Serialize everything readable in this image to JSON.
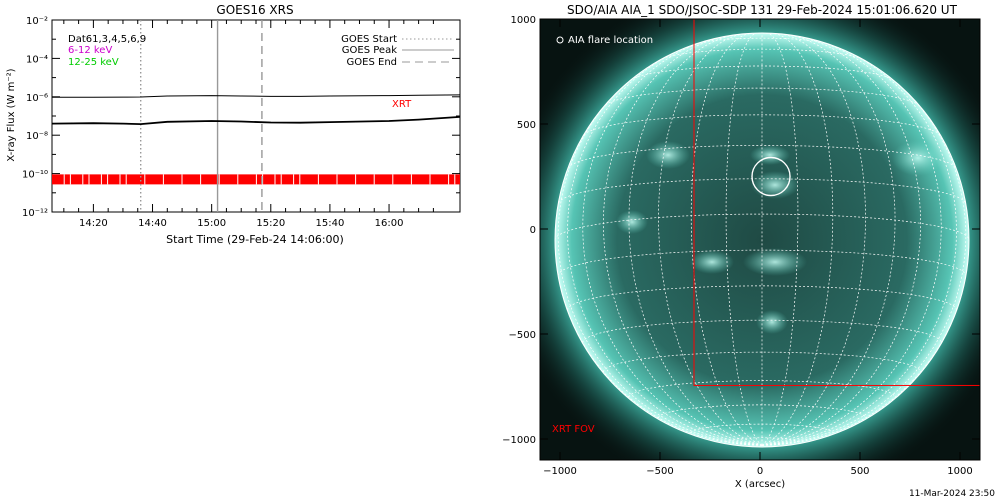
{
  "chart_data": [
    {
      "type": "line",
      "title": "GOES16 XRS",
      "xlabel": "Start Time (29-Feb-24 14:06:00)",
      "ylabel": "X-ray Flux (W m⁻²)",
      "yscale": "log",
      "xlim": [
        "14:06",
        "16:24"
      ],
      "ylim": [
        1e-12,
        0.01
      ],
      "x_ticks": [
        "14:20",
        "14:40",
        "15:00",
        "15:20",
        "15:40",
        "16:00"
      ],
      "y_ticks": [
        "10⁻¹²",
        "10⁻¹⁰",
        "10⁻⁸",
        "10⁻⁶",
        "10⁻⁴",
        "10⁻²"
      ],
      "grid": false,
      "legend_placement": "top-right",
      "detector_label": "Dat61,3,4,5,6,9",
      "series": [
        {
          "name": "6-12 keV",
          "color": "#cc00cc",
          "x": [
            "14:06",
            "14:20",
            "14:30",
            "14:36",
            "14:45",
            "15:00",
            "15:10",
            "15:20",
            "15:30",
            "15:40",
            "16:00",
            "16:10",
            "16:24"
          ],
          "values": [
            9.5e-07,
            9.5e-07,
            9.6e-07,
            9.8e-07,
            1.1e-06,
            1.15e-06,
            1.1e-06,
            1.05e-06,
            1.05e-06,
            1.1e-06,
            1.15e-06,
            1.2e-06,
            1.25e-06
          ]
        },
        {
          "name": "12-25 keV",
          "color": "#00cc00",
          "x": [
            "14:06",
            "14:20",
            "14:30",
            "14:36",
            "14:45",
            "15:00",
            "15:10",
            "15:20",
            "15:30",
            "15:40",
            "16:00",
            "16:10",
            "16:24"
          ],
          "values": [
            4e-08,
            4.2e-08,
            4e-08,
            3.8e-08,
            5e-08,
            5.5e-08,
            5.2e-08,
            4.6e-08,
            4.5e-08,
            4.8e-08,
            5.5e-08,
            6.5e-08,
            9e-08
          ]
        }
      ],
      "events": [
        {
          "name": "GOES Start",
          "time": "14:36",
          "style": "dotted",
          "color": "#999999"
        },
        {
          "name": "GOES Peak",
          "time": "15:02",
          "style": "solid",
          "color": "#999999"
        },
        {
          "name": "GOES End",
          "time": "15:17",
          "style": "dashed",
          "color": "#999999"
        }
      ],
      "xrt_band": {
        "label": "XRT",
        "value": 5e-11,
        "color": "#ff0000"
      }
    },
    {
      "type": "image",
      "title": "SDO/AIA AIA_1 SDO/JSOC-SDP 131 29-Feb-2024 15:01:06.620 UT",
      "xlabel": "X (arcsec)",
      "x_ticks": [
        "−1000",
        "−500",
        "0",
        "500",
        "1000"
      ],
      "y_ticks": [
        "1000",
        "500",
        "0",
        "−500",
        "−1000"
      ],
      "xlim": [
        -1100,
        1100
      ],
      "ylim": [
        -1100,
        1000
      ],
      "flare_legend": "AIA flare location",
      "flare_location": {
        "x": 55,
        "y": 250
      },
      "xrt_fov_label": "XRT FOV",
      "xrt_fov": {
        "x": [
          -330,
          1100
        ],
        "y": [
          -745,
          1000
        ]
      },
      "colors": {
        "disk": "#3aa89a",
        "highlight": "#bff5ee",
        "fov": "#ff0000"
      }
    }
  ],
  "footer": {
    "timestamp": "11-Mar-2024 23:50"
  }
}
